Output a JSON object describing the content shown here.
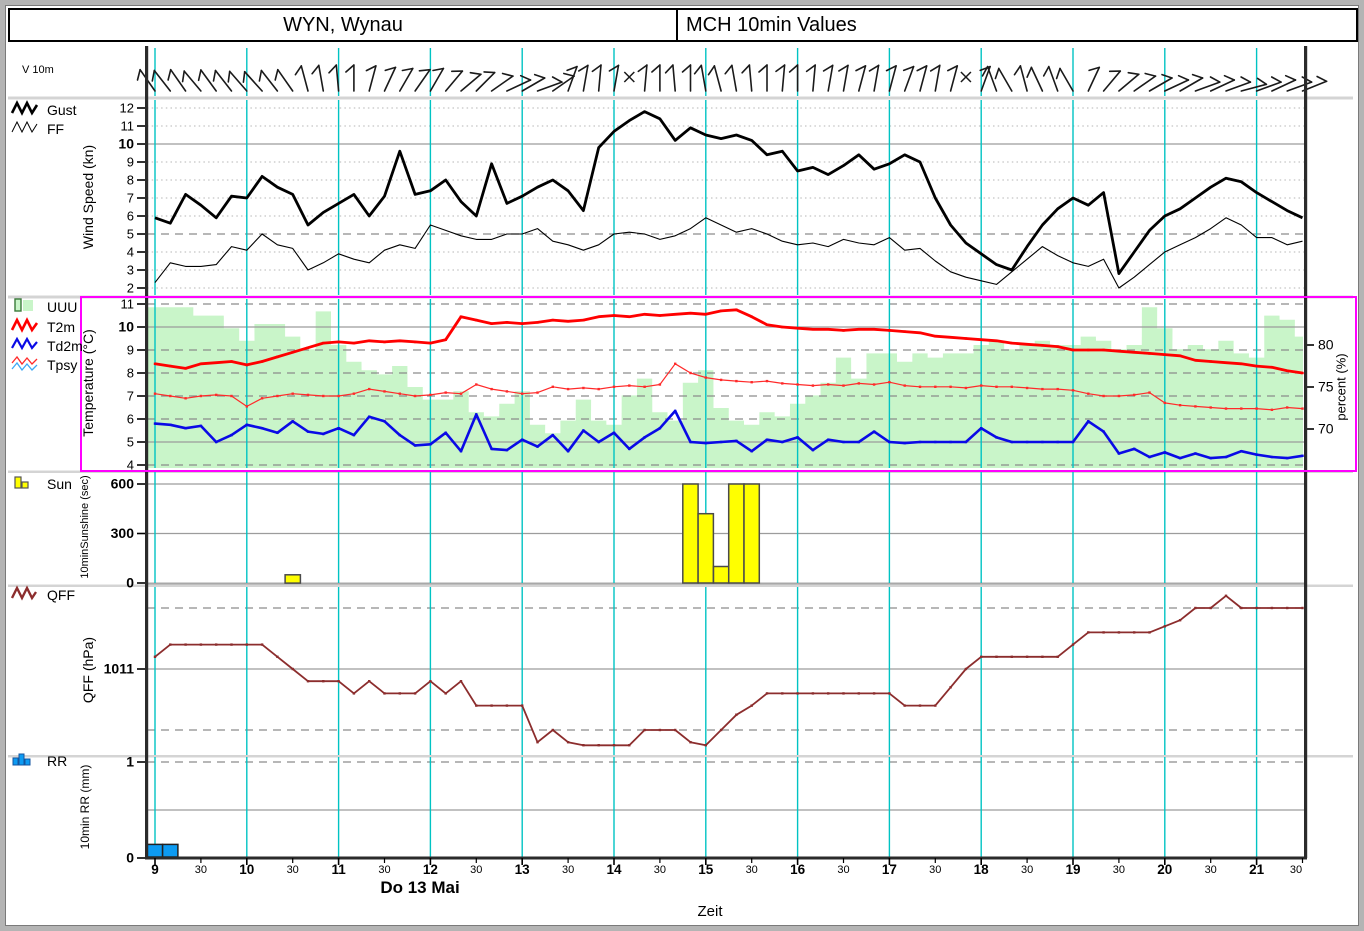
{
  "header": {
    "station_title": "WYN, Wynau",
    "view_title": "MCH 10min Values"
  },
  "x_axis": {
    "hour_labels": [
      "9",
      "10",
      "11",
      "12",
      "13",
      "14",
      "15",
      "16",
      "17",
      "18",
      "19",
      "20",
      "21"
    ],
    "half_hour_label": "30",
    "date_label": "Do 13 Mai",
    "axis_label": "Zeit"
  },
  "colors": {
    "cyan_grid": "#00c3c3",
    "humidity_fill": "#c9f5c9",
    "t2m": "#ff0000",
    "tpsy": "#ff2a2a",
    "td2m": "#0a0ae6",
    "qff": "#8c2d2d",
    "sun_bar": "#ffff00",
    "rr_bar": "#0d9bf2",
    "gust": "#000000",
    "ff": "#000000",
    "frame_magenta": "#ff00ff"
  },
  "panels": {
    "barbs": {
      "label": "V 10m"
    },
    "wind": {
      "legend": [
        "Gust",
        "FF"
      ],
      "ylabel": "Wind Speed (kn)",
      "ticks": [
        12,
        11,
        10,
        9,
        8,
        7,
        6,
        5,
        4,
        3,
        2
      ],
      "bold_ticks": [
        10
      ]
    },
    "temp": {
      "legend": [
        "UUU",
        "T2m",
        "Td2m",
        "Tpsy"
      ],
      "ylabel": "Temperature (°C)",
      "ticks": [
        11,
        10,
        9,
        8,
        7,
        6,
        5,
        4
      ],
      "bold_ticks": [
        10
      ],
      "right_ylabel": "percent (%)",
      "right_ticks": [
        80,
        75,
        70
      ]
    },
    "sun": {
      "legend": [
        "Sun"
      ],
      "ylabel": "10minSunshine (sec)",
      "ticks": [
        600,
        300,
        0
      ],
      "bold_ticks": [
        600,
        300,
        0
      ]
    },
    "qff": {
      "legend": [
        "QFF"
      ],
      "ylabel": "QFF (hPa)",
      "ticks": [
        1011
      ],
      "bold_ticks": [
        1011
      ]
    },
    "rr": {
      "legend": [
        "RR"
      ],
      "ylabel": "10min RR (mm)",
      "ticks": [
        1,
        0
      ],
      "bold_ticks": [
        1,
        0
      ]
    }
  },
  "chart_data": {
    "type": "line",
    "subtype": "multi-panel-meteogram",
    "x": {
      "start_hour": 9,
      "end_hour": 21.5,
      "step_minutes": 10,
      "points": 76,
      "grid": "hourly-cyan"
    },
    "panels": {
      "wind": {
        "ylabel": "Wind Speed (kn)",
        "ylim": [
          1.6,
          12.45
        ],
        "series": {
          "gust": [
            5.9,
            5.6,
            7.2,
            6.6,
            5.9,
            7.1,
            7.0,
            8.2,
            7.6,
            7.2,
            5.5,
            6.2,
            6.7,
            7.2,
            6.0,
            7.1,
            9.6,
            7.2,
            7.4,
            8.0,
            6.8,
            6.0,
            8.9,
            6.7,
            7.1,
            7.6,
            8.0,
            7.4,
            6.3,
            9.8,
            10.7,
            11.3,
            11.8,
            11.4,
            10.2,
            10.9,
            10.5,
            10.3,
            10.5,
            10.2,
            9.4,
            9.6,
            8.5,
            8.7,
            8.3,
            8.8,
            9.4,
            8.6,
            8.9,
            9.4,
            9.0,
            7.0,
            5.5,
            4.5,
            3.9,
            3.3,
            3.0,
            4.3,
            5.5,
            6.4,
            7.0,
            6.6,
            7.3,
            2.8,
            4.0,
            5.2,
            6.0,
            6.4,
            7.0,
            7.6,
            8.1,
            7.9,
            7.3,
            6.8,
            6.3,
            5.9
          ],
          "ff": [
            2.3,
            3.4,
            3.2,
            3.2,
            3.3,
            4.3,
            4.1,
            5.0,
            4.4,
            4.2,
            3.0,
            3.4,
            3.9,
            3.6,
            3.4,
            4.1,
            4.4,
            4.2,
            5.5,
            5.2,
            4.9,
            4.7,
            4.7,
            5.0,
            5.0,
            5.3,
            4.6,
            4.4,
            4.1,
            4.4,
            5.0,
            5.1,
            5.0,
            4.7,
            4.9,
            5.3,
            5.9,
            5.5,
            5.1,
            5.3,
            5.0,
            4.6,
            4.4,
            4.5,
            4.3,
            4.7,
            4.5,
            4.4,
            4.8,
            4.1,
            4.2,
            3.5,
            2.9,
            2.6,
            2.4,
            2.2,
            2.9,
            3.6,
            4.3,
            3.8,
            3.4,
            3.2,
            3.6,
            2.0,
            2.6,
            3.3,
            4.0,
            4.4,
            4.8,
            5.3,
            5.9,
            5.5,
            4.8,
            4.8,
            4.4,
            4.6
          ]
        }
      },
      "temp": {
        "ylabel": "Temperature (°C)",
        "ylim": [
          3.87,
          11.22
        ],
        "right_ylim": [
          65.4,
          85.5
        ],
        "series": {
          "t2m": [
            8.4,
            8.3,
            8.2,
            8.4,
            8.45,
            8.5,
            8.35,
            8.5,
            8.7,
            8.9,
            9.1,
            9.3,
            9.35,
            9.3,
            9.4,
            9.35,
            9.4,
            9.35,
            9.3,
            9.45,
            10.45,
            10.3,
            10.15,
            10.2,
            10.15,
            10.2,
            10.3,
            10.25,
            10.3,
            10.45,
            10.5,
            10.45,
            10.55,
            10.5,
            10.55,
            10.6,
            10.55,
            10.7,
            10.75,
            10.45,
            10.1,
            10.0,
            9.95,
            9.9,
            9.9,
            9.85,
            9.9,
            9.9,
            9.85,
            9.8,
            9.75,
            9.6,
            9.55,
            9.5,
            9.45,
            9.4,
            9.3,
            9.25,
            9.2,
            9.15,
            9.0,
            9.0,
            9.0,
            8.95,
            8.9,
            8.85,
            8.8,
            8.75,
            8.55,
            8.5,
            8.45,
            8.4,
            8.3,
            8.25,
            8.1,
            8.0
          ],
          "td2m": [
            5.8,
            5.75,
            5.6,
            5.7,
            5.0,
            5.3,
            5.75,
            5.6,
            5.4,
            5.9,
            5.45,
            5.35,
            5.6,
            5.3,
            6.1,
            5.9,
            5.3,
            4.85,
            4.9,
            5.4,
            4.6,
            6.2,
            4.7,
            4.65,
            5.1,
            4.8,
            5.3,
            4.6,
            5.5,
            5.0,
            5.4,
            4.7,
            5.2,
            5.6,
            6.35,
            5.0,
            4.95,
            5.0,
            5.05,
            4.6,
            5.1,
            5.0,
            5.2,
            4.65,
            5.1,
            5.0,
            5.0,
            5.45,
            5.0,
            4.95,
            5.0,
            5.0,
            5.0,
            5.0,
            5.6,
            5.2,
            5.0,
            5.0,
            5.0,
            5.0,
            5.0,
            5.9,
            5.45,
            4.5,
            4.7,
            4.35,
            4.55,
            4.3,
            4.5,
            4.3,
            4.35,
            4.6,
            4.45,
            4.35,
            4.3,
            4.4
          ],
          "tpsy": [
            7.1,
            7.0,
            6.9,
            7.0,
            7.05,
            7.0,
            6.55,
            6.9,
            7.0,
            7.1,
            7.05,
            7.0,
            7.0,
            7.1,
            7.3,
            7.2,
            7.1,
            7.0,
            7.05,
            7.15,
            7.1,
            7.5,
            7.3,
            7.2,
            7.1,
            7.15,
            7.4,
            7.3,
            7.35,
            7.3,
            7.4,
            7.45,
            7.4,
            7.5,
            8.4,
            8.0,
            7.8,
            7.7,
            7.65,
            7.6,
            7.65,
            7.55,
            7.5,
            7.45,
            7.5,
            7.45,
            7.55,
            7.5,
            7.6,
            7.45,
            7.4,
            7.4,
            7.4,
            7.35,
            7.45,
            7.4,
            7.4,
            7.35,
            7.3,
            7.3,
            7.25,
            7.1,
            7.0,
            7.0,
            7.05,
            7.15,
            6.7,
            6.6,
            6.55,
            6.5,
            6.45,
            6.45,
            6.45,
            6.4,
            6.5,
            6.45
          ]
        },
        "humidity_pct": [
          84.5,
          84.5,
          84.5,
          83.5,
          83.5,
          82.0,
          80.5,
          82.5,
          82.5,
          81.0,
          79.5,
          84.0,
          80.0,
          78.0,
          77.0,
          76.5,
          77.5,
          75.0,
          73.5,
          73.5,
          74.5,
          72.0,
          71.5,
          73.0,
          74.5,
          70.5,
          69.5,
          71.0,
          73.5,
          71.0,
          70.5,
          74.0,
          76.0,
          72.0,
          71.0,
          75.5,
          77.0,
          72.5,
          71.0,
          70.5,
          72.0,
          71.5,
          73.0,
          74.0,
          75.5,
          78.5,
          76.0,
          79.0,
          79.0,
          78.0,
          79.0,
          78.5,
          79.0,
          79.0,
          80.0,
          80.5,
          79.5,
          80.0,
          80.5,
          80.0,
          80.0,
          81.0,
          80.5,
          79.5,
          80.0,
          84.5,
          82.0,
          79.5,
          80.0,
          79.5,
          80.5,
          79.0,
          78.5,
          83.5,
          83.0,
          81.0
        ]
      },
      "sun": {
        "ylabel": "10minSunshine (sec)",
        "ylim": [
          0,
          685
        ],
        "values": [
          0,
          0,
          0,
          0,
          0,
          0,
          0,
          0,
          0,
          50,
          0,
          0,
          0,
          0,
          0,
          0,
          0,
          0,
          0,
          0,
          0,
          0,
          0,
          0,
          0,
          0,
          0,
          0,
          0,
          0,
          0,
          0,
          0,
          0,
          0,
          600,
          420,
          100,
          600,
          600,
          0,
          0,
          0,
          0,
          0,
          0,
          0,
          0,
          0,
          0,
          0,
          0,
          0,
          0,
          0,
          0,
          0,
          0,
          0,
          0,
          0,
          0,
          0,
          0,
          0,
          0,
          0,
          0,
          0,
          0,
          0,
          0,
          0,
          0,
          0,
          0
        ]
      },
      "qff": {
        "ylabel": "QFF (hPa)",
        "ylim": [
          1009.6,
          1012.35
        ],
        "values": [
          1011.2,
          1011.4,
          1011.4,
          1011.4,
          1011.4,
          1011.4,
          1011.4,
          1011.4,
          1011.2,
          1011.0,
          1010.8,
          1010.8,
          1010.8,
          1010.6,
          1010.8,
          1010.6,
          1010.6,
          1010.6,
          1010.8,
          1010.6,
          1010.8,
          1010.4,
          1010.4,
          1010.4,
          1010.4,
          1009.8,
          1010.0,
          1009.8,
          1009.75,
          1009.75,
          1009.75,
          1009.75,
          1010.0,
          1010.0,
          1010.0,
          1009.8,
          1009.75,
          1010.0,
          1010.25,
          1010.4,
          1010.6,
          1010.6,
          1010.6,
          1010.6,
          1010.6,
          1010.6,
          1010.6,
          1010.6,
          1010.6,
          1010.4,
          1010.4,
          1010.4,
          1010.7,
          1011.0,
          1011.2,
          1011.2,
          1011.2,
          1011.2,
          1011.2,
          1011.2,
          1011.4,
          1011.6,
          1011.6,
          1011.6,
          1011.6,
          1011.6,
          1011.7,
          1011.8,
          1012.0,
          1012.0,
          1012.2,
          1012.0,
          1012.0,
          1012.0,
          1012.0,
          1012.0
        ]
      },
      "rr": {
        "ylabel": "10min RR (mm)",
        "ylim": [
          0,
          1.05
        ],
        "values": [
          0.1,
          0.1,
          0,
          0,
          0,
          0,
          0,
          0,
          0,
          0,
          0,
          0,
          0,
          0,
          0,
          0,
          0,
          0,
          0,
          0,
          0,
          0,
          0,
          0,
          0,
          0,
          0,
          0,
          0,
          0,
          0,
          0,
          0,
          0,
          0,
          0,
          0,
          0,
          0,
          0,
          0,
          0,
          0,
          0,
          0,
          0,
          0,
          0,
          0,
          0,
          0,
          0,
          0,
          0,
          0,
          0,
          0,
          0,
          0,
          0,
          0,
          0,
          0,
          0,
          0,
          0,
          0,
          0,
          0,
          0,
          0,
          0,
          0,
          0,
          0,
          0
        ]
      },
      "barbs": {
        "label": "V 10m",
        "symbols": [
          -35,
          -38,
          -35,
          -40,
          -36,
          -38,
          -41,
          -42,
          -38,
          -35,
          -15,
          -10,
          -5,
          0,
          15,
          25,
          30,
          35,
          30,
          40,
          50,
          45,
          55,
          65,
          60,
          70,
          55,
          20,
          10,
          5,
          10,
          "c",
          5,
          0,
          -5,
          0,
          -10,
          -15,
          -10,
          -5,
          0,
          5,
          0,
          5,
          10,
          10,
          15,
          10,
          15,
          20,
          15,
          10,
          15,
          "c,",
          20,
          -20,
          -30,
          -15,
          -25,
          -20,
          -30,
          25,
          40,
          50,
          55,
          60,
          65,
          60,
          70,
          65,
          70,
          75,
          70,
          65,
          70,
          68
        ]
      }
    }
  }
}
